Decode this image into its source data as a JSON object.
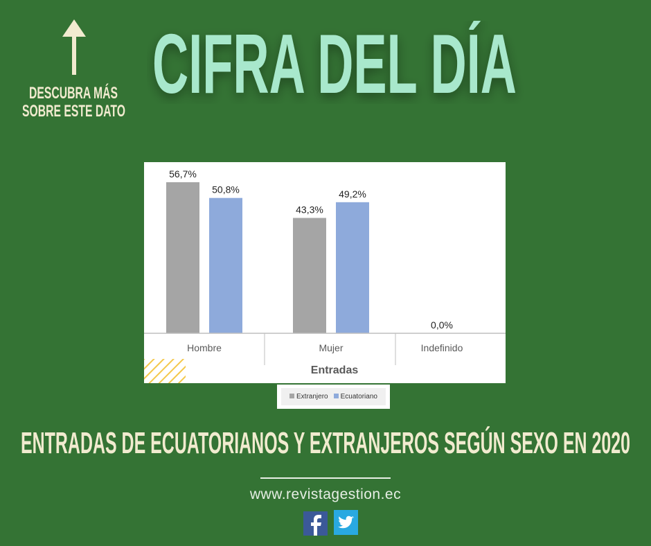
{
  "header": {
    "title": "CIFRA DEL DÍA",
    "cta_line1": "DESCUBRA MÁS",
    "cta_line2": "SOBRE ESTE DATO",
    "cta_icon": "arrow-up-icon"
  },
  "chart_data": {
    "type": "bar",
    "xlabel": "Entradas",
    "categories": [
      "Hombre",
      "Mujer",
      "Indefinido"
    ],
    "series": [
      {
        "name": "Extranjero",
        "color": "#a5a5a5",
        "values": [
          56.7,
          43.3,
          0.0
        ],
        "labels": [
          "56,7%",
          "43,3%",
          "0,0%"
        ]
      },
      {
        "name": "Ecuatoriano",
        "color": "#8eaadb",
        "values": [
          50.8,
          49.2,
          null
        ],
        "labels": [
          "50,8%",
          "49,2%",
          ""
        ]
      }
    ],
    "ylim": [
      0,
      60
    ],
    "grid": false,
    "legend": "bottom"
  },
  "footer": {
    "subtitle": "ENTRADAS DE ECUATORIANOS Y EXTRANJEROS SEGÚN SEXO EN 2020",
    "url": "www.revistagestion.ec",
    "social": [
      {
        "name": "facebook-icon",
        "color": "#3b5998"
      },
      {
        "name": "twitter-icon",
        "color": "#29a9e1"
      }
    ]
  },
  "colors": {
    "background": "#347334",
    "title": "#a8e8cc",
    "accent_text": "#f1ebcf"
  }
}
